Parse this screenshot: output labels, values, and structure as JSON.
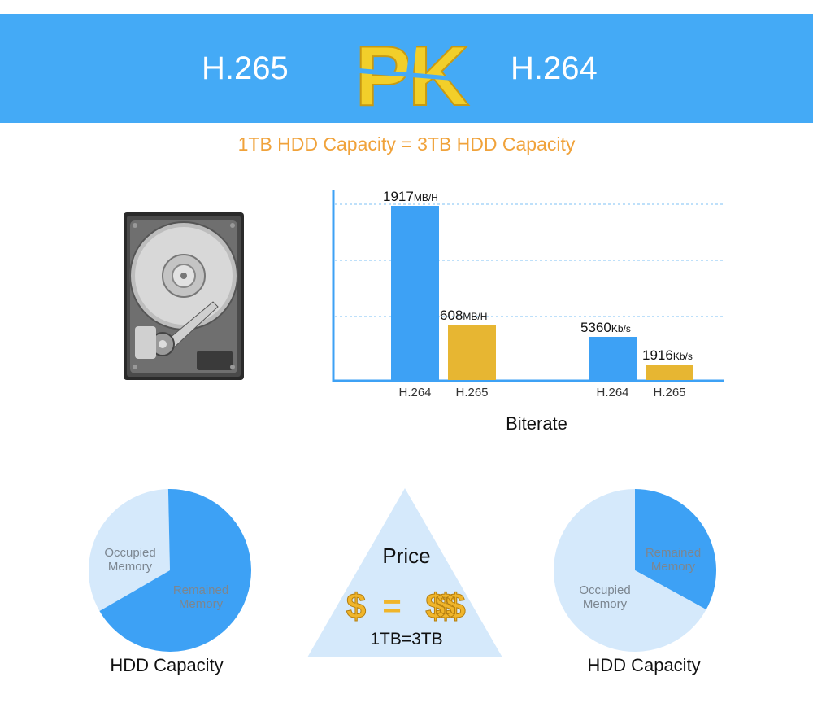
{
  "banner": {
    "left_codec": "H.265",
    "right_codec": "H.264",
    "pk_text": "PK",
    "bg_color": "#44aaf6",
    "pk_color": "#f2cf2a"
  },
  "subtitle": "1TB HDD Capacity = 3TB HDD Capacity",
  "hdd_image": {
    "icon": "hard-disk-drive-icon"
  },
  "chart_data": {
    "type": "bar",
    "title": "Biterate",
    "groups": [
      {
        "bars": [
          {
            "category": "H.264",
            "value": 1917,
            "value_label": "1917",
            "unit": "MB/H",
            "color": "#3da1f5"
          },
          {
            "category": "H.265",
            "value": 608,
            "value_label": "608",
            "unit": "MB/H",
            "color": "#e7b632"
          }
        ]
      },
      {
        "bars": [
          {
            "category": "H.264",
            "value": 5360,
            "value_label": "5360",
            "unit": "Kb/s",
            "color": "#3da1f5"
          },
          {
            "category": "H.265",
            "value": 1916,
            "value_label": "1916",
            "unit": "Kb/s",
            "color": "#e7b632"
          }
        ]
      }
    ],
    "grid": true,
    "axis_color": "#3da1f5"
  },
  "pies": [
    {
      "slices": [
        {
          "label_lines": [
            "Occupied",
            "Memory"
          ],
          "fraction": 0.33,
          "color": "#d5e9fb"
        },
        {
          "label_lines": [
            "Remained",
            "Memory"
          ],
          "fraction": 0.67,
          "color": "#3da1f5"
        }
      ],
      "caption": "HDD Capacity"
    },
    {
      "slices": [
        {
          "label_lines": [
            "Remained",
            "Memory"
          ],
          "fraction": 0.33,
          "color": "#3da1f5"
        },
        {
          "label_lines": [
            "Occupied",
            "Memory"
          ],
          "fraction": 0.67,
          "color": "#d5e9fb"
        }
      ],
      "caption": "HDD Capacity"
    }
  ],
  "price": {
    "title": "Price",
    "equation": "1TB=3TB",
    "left_symbol": "$",
    "eq_symbol": "=",
    "right_symbol": "$$$",
    "triangle_color": "#d5e9fb",
    "money_color": "#f0b52a"
  }
}
